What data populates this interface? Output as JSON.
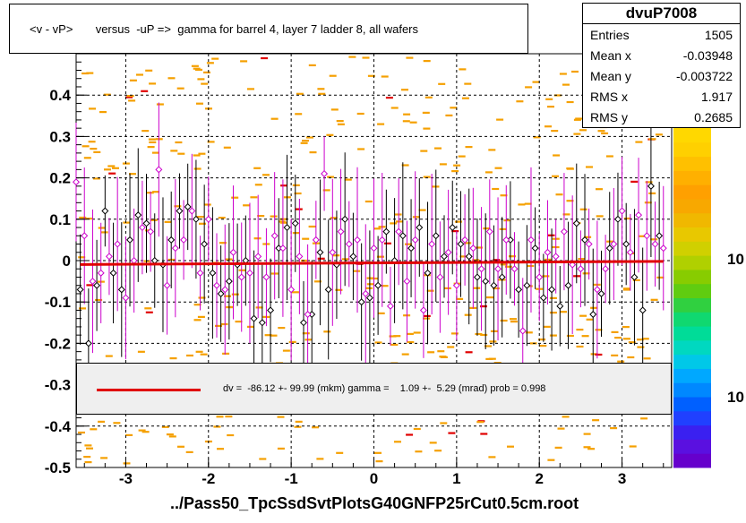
{
  "title": "<v - vP>       versus  -uP =>  gamma for barrel 4, layer 7 ladder 8, all wafers",
  "footer": "../Pass50_TpcSsdSvtPlotsG40GNFP25rCut0.5cm.root",
  "stats": {
    "name": "dvuP7008",
    "rows": [
      {
        "key": "Entries",
        "value": "1505"
      },
      {
        "key": "Mean x",
        "value": "-0.03948"
      },
      {
        "key": "Mean y",
        "value": "-0.003722"
      },
      {
        "key": "RMS x",
        "value": "1.917"
      },
      {
        "key": "RMS y",
        "value": "0.2685"
      }
    ]
  },
  "fit_text": "dv =  -86.12 +- 99.99 (mkm) gamma =    1.09 +-  5.29 (mrad) prob = 0.998",
  "colorbar_labels": [
    "10",
    "10"
  ],
  "colors": {
    "fit": "#e00000",
    "hist_cell": "#f5a000",
    "profile": "#000000",
    "profile2": "#cc00cc"
  },
  "chart_data": {
    "type": "scatter",
    "title": "<v - vP>       versus  -uP =>  gamma for barrel 4, layer 7 ladder 8, all wafers",
    "xlim": [
      -3.6,
      3.6
    ],
    "ylim": [
      -0.5,
      0.5
    ],
    "x_ticks": [
      -3,
      -2,
      -1,
      0,
      1,
      2,
      3
    ],
    "y_ticks": [
      -0.5,
      -0.4,
      -0.3,
      -0.2,
      -0.1,
      0,
      0.1,
      0.2,
      0.3,
      0.4
    ],
    "x_tick_labels": [
      "-3",
      "-2",
      "-1",
      "0",
      "1",
      "2",
      "3"
    ],
    "y_tick_labels": [
      "-0.5",
      "-0.4",
      "-0.3",
      "-0.2",
      "-0.1",
      "0",
      "0.1",
      "0.2",
      "0.3",
      "0.4"
    ],
    "grid": true,
    "fit_line": {
      "x": [
        -3.55,
        3.5
      ],
      "y": [
        -0.0095,
        -0.0018
      ]
    },
    "series": [
      {
        "x": [
          -3.55,
          -3.45,
          -3.35,
          -3.25,
          -3.15,
          -3.05,
          -2.95,
          -2.85,
          -2.75,
          -2.65,
          -2.55,
          -2.45,
          -2.35,
          -2.25,
          -2.15,
          -2.05,
          -1.95,
          -1.85,
          -1.75,
          -1.65,
          -1.55,
          -1.45,
          -1.35,
          -1.25,
          -1.15,
          -1.05,
          -0.95,
          -0.85,
          -0.75,
          -0.65,
          -0.55,
          -0.45,
          -0.35,
          -0.25,
          -0.15,
          -0.05,
          0.05,
          0.15,
          0.25,
          0.35,
          0.45,
          0.55,
          0.65,
          0.75,
          0.85,
          0.95,
          1.05,
          1.15,
          1.25,
          1.35,
          1.45,
          1.55,
          1.65,
          1.75,
          1.85,
          1.95,
          2.05,
          2.15,
          2.25,
          2.35,
          2.45,
          2.55,
          2.65,
          2.75,
          2.85,
          2.95,
          3.05,
          3.15,
          3.25,
          3.35,
          3.45
        ],
        "y": [
          -0.07,
          -0.2,
          -0.06,
          0.12,
          -0.03,
          -0.07,
          0.05,
          0.11,
          0.09,
          0.0,
          -0.01,
          0.05,
          0.12,
          0.13,
          0.1,
          0.04,
          -0.03,
          -0.08,
          -0.05,
          -0.01,
          0.0,
          -0.14,
          -0.15,
          -0.12,
          0.03,
          0.08,
          0.09,
          -0.15,
          -0.13,
          0.02,
          -0.07,
          -0.01,
          0.1,
          0.01,
          -0.1,
          -0.09,
          -0.06,
          0.07,
          0.0,
          0.06,
          0.03,
          0.08,
          -0.03,
          0.06,
          0.01,
          0.08,
          0.04,
          0.01,
          -0.04,
          -0.05,
          -0.06,
          -0.04,
          0.05,
          -0.07,
          -0.06,
          0.03,
          -0.09,
          -0.07,
          -0.11,
          -0.06,
          0.09,
          0.05,
          -0.13,
          -0.08,
          0.03,
          0.1,
          0.04,
          -0.04,
          -0.12,
          0.18,
          0.06
        ]
      },
      {
        "x": [
          -3.6,
          -3.5,
          -3.4,
          -3.3,
          -3.2,
          -3.1,
          -3.0,
          -2.9,
          -2.8,
          -2.7,
          -2.6,
          -2.5,
          -2.4,
          -2.3,
          -2.2,
          -2.1,
          -2.0,
          -1.9,
          -1.8,
          -1.7,
          -1.6,
          -1.5,
          -1.4,
          -1.3,
          -1.2,
          -1.1,
          -1.0,
          -0.9,
          -0.8,
          -0.7,
          -0.6,
          -0.5,
          -0.4,
          -0.3,
          -0.2,
          -0.1,
          0.0,
          0.1,
          0.2,
          0.3,
          0.4,
          0.5,
          0.6,
          0.7,
          0.8,
          0.9,
          1.0,
          1.1,
          1.2,
          1.3,
          1.4,
          1.5,
          1.6,
          1.7,
          1.8,
          1.9,
          2.0,
          2.1,
          2.2,
          2.3,
          2.4,
          2.5,
          2.6,
          2.7,
          2.8,
          2.9,
          3.0,
          3.1,
          3.2,
          3.3,
          3.4,
          3.5
        ],
        "y": [
          0.19,
          0.06,
          -0.05,
          -0.03,
          0.01,
          0.04,
          -0.09,
          0.0,
          0.08,
          0.07,
          0.22,
          -0.06,
          0.03,
          0.05,
          0.12,
          -0.03,
          0.1,
          -0.06,
          -0.07,
          0.02,
          -0.04,
          -0.03,
          0.01,
          -0.04,
          0.06,
          0.03,
          -0.07,
          0.01,
          -0.13,
          0.05,
          0.21,
          0.02,
          0.07,
          0.04,
          0.05,
          -0.08,
          0.03,
          0.05,
          -0.11,
          0.07,
          -0.05,
          0.05,
          -0.12,
          0.04,
          -0.04,
          0.02,
          -0.06,
          0.05,
          0.03,
          -0.02,
          0.07,
          -0.02,
          0.05,
          -0.02,
          -0.17,
          0.05,
          -0.04,
          0.02,
          0.01,
          0.07,
          -0.01,
          -0.02,
          0.04,
          -0.07,
          -0.02,
          0.04,
          0.12,
          0.02,
          0.11,
          0.06,
          0.04,
          0.03
        ]
      }
    ]
  }
}
